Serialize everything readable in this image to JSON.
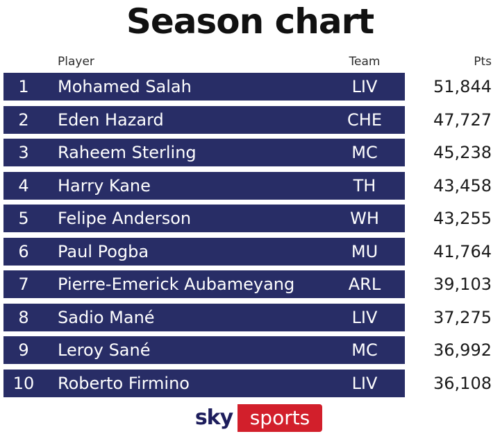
{
  "title": "Season chart",
  "logo": {
    "sky": "sky",
    "sports": "sports"
  },
  "colors": {
    "row_bar": "#282d66",
    "logo_red": "#d21f2b",
    "logo_navy": "#1d1d5c"
  },
  "chart_data": {
    "type": "table",
    "title": "Season chart",
    "columns": [
      "Player",
      "Team",
      "Pts"
    ],
    "rows": [
      {
        "rank": "1",
        "player": "Mohamed Salah",
        "team": "LIV",
        "pts": "51,844"
      },
      {
        "rank": "2",
        "player": "Eden Hazard",
        "team": "CHE",
        "pts": "47,727"
      },
      {
        "rank": "3",
        "player": "Raheem Sterling",
        "team": "MC",
        "pts": "45,238"
      },
      {
        "rank": "4",
        "player": "Harry Kane",
        "team": "TH",
        "pts": "43,458"
      },
      {
        "rank": "5",
        "player": "Felipe Anderson",
        "team": "WH",
        "pts": "43,255"
      },
      {
        "rank": "6",
        "player": "Paul Pogba",
        "team": "MU",
        "pts": "41,764"
      },
      {
        "rank": "7",
        "player": "Pierre-Emerick Aubameyang",
        "team": "ARL",
        "pts": "39,103"
      },
      {
        "rank": "8",
        "player": "Sadio Mané",
        "team": "LIV",
        "pts": "37,275"
      },
      {
        "rank": "9",
        "player": "Leroy Sané",
        "team": "MC",
        "pts": "36,992"
      },
      {
        "rank": "10",
        "player": "Roberto Firmino",
        "team": "LIV",
        "pts": "36,108"
      }
    ]
  }
}
